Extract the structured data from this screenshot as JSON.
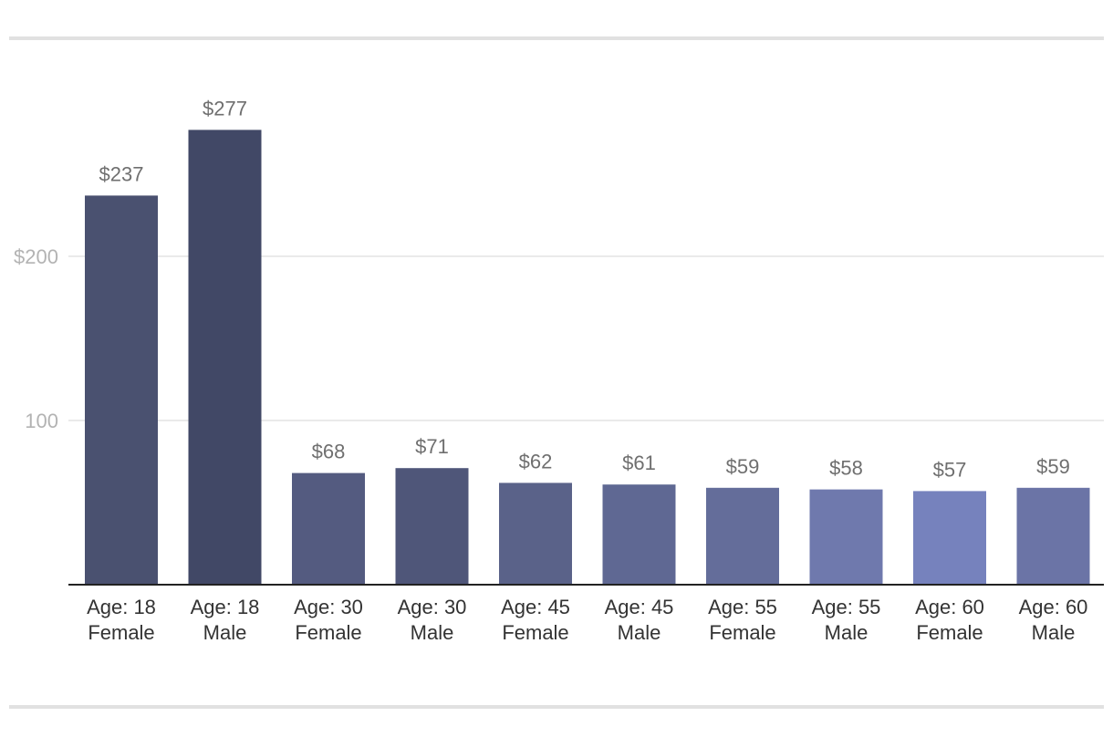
{
  "chart_data": {
    "type": "bar",
    "categories": [
      [
        "Age: 18",
        "Female"
      ],
      [
        "Age: 18",
        "Male"
      ],
      [
        "Age: 30",
        "Female"
      ],
      [
        "Age: 30",
        "Male"
      ],
      [
        "Age: 45",
        "Female"
      ],
      [
        "Age: 45",
        "Male"
      ],
      [
        "Age: 55",
        "Female"
      ],
      [
        "Age: 55",
        "Male"
      ],
      [
        "Age: 60",
        "Female"
      ],
      [
        "Age: 60",
        "Male"
      ]
    ],
    "values": [
      237,
      277,
      68,
      71,
      62,
      61,
      59,
      58,
      57,
      59
    ],
    "data_labels": [
      "$237",
      "$277",
      "$68",
      "$71",
      "$62",
      "$61",
      "$59",
      "$58",
      "$57",
      "$59"
    ],
    "bar_colors": [
      "#4a5170",
      "#414866",
      "#545b80",
      "#4f5679",
      "#5a6289",
      "#5f6893",
      "#646d9a",
      "#6f79ad",
      "#7682bd",
      "#6b74a6"
    ],
    "y_ticks": [
      {
        "value": 100,
        "label": "100"
      },
      {
        "value": 200,
        "label": "$200"
      }
    ],
    "ylim": [
      0,
      300
    ],
    "grid": true,
    "title": "",
    "xlabel": "",
    "ylabel": ""
  }
}
